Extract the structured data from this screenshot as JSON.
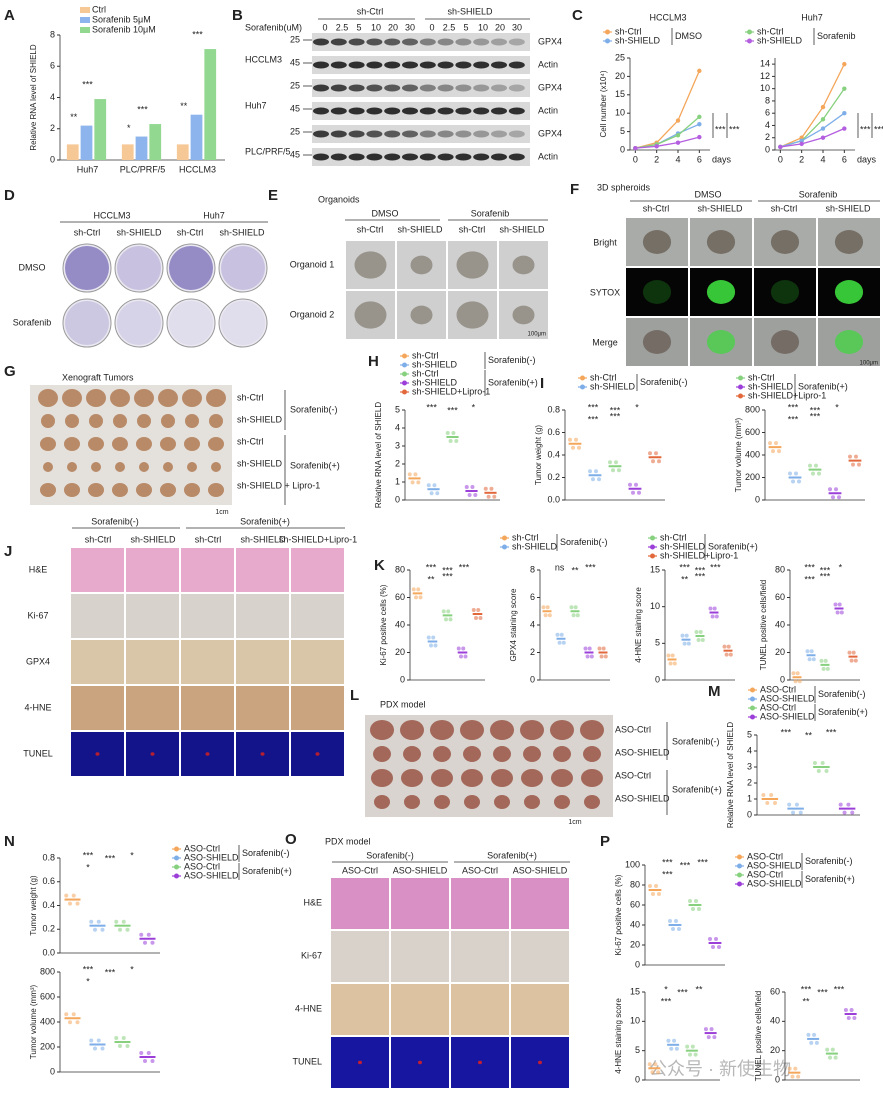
{
  "panel_letters": [
    "A",
    "B",
    "C",
    "D",
    "E",
    "F",
    "G",
    "H",
    "I",
    "J",
    "K",
    "L",
    "M",
    "N",
    "O",
    "P"
  ],
  "blot": {
    "dose_label": "Sorafenib(uM)",
    "groups": [
      "sh-Ctrl",
      "sh-SHIELD"
    ],
    "doses": [
      "0",
      "2.5",
      "5",
      "10",
      "20",
      "30"
    ],
    "cell_lines": [
      "HCCLM3",
      "Huh7",
      "PLC/PRF/5"
    ],
    "proteins": [
      "GPX4",
      "Actin"
    ],
    "markers": [
      "25",
      "45"
    ]
  },
  "colony": {
    "cell_lines": [
      "HCCLM3",
      "Huh7"
    ],
    "groups": [
      "sh-Ctrl",
      "sh-SHIELD"
    ],
    "treatments": [
      "DMSO",
      "Sorafenib"
    ]
  },
  "organoids": {
    "title": "Organoids",
    "treatments": [
      "DMSO",
      "Sorafenib"
    ],
    "groups": [
      "sh-Ctrl",
      "sh-SHIELD"
    ],
    "rows": [
      "Organoid 1",
      "Organoid 2"
    ],
    "scale": "100μm"
  },
  "spheroids": {
    "title": "3D spheroids",
    "treatments": [
      "DMSO",
      "Sorafenib"
    ],
    "groups": [
      "sh-Ctrl",
      "sh-SHIELD"
    ],
    "rows": [
      "Bright",
      "SYTOX",
      "Merge"
    ],
    "scale": "100μm"
  },
  "xenograft": {
    "title": "Xenograft Tumors",
    "rows": [
      "sh-Ctrl",
      "sh-SHIELD",
      "sh-Ctrl",
      "sh-SHIELD",
      "sh-SHIELD + Lipro-1"
    ],
    "groups": [
      "Sorafenib(-)",
      "Sorafenib(+)"
    ],
    "scale": "1cm"
  },
  "ihc": {
    "groups": [
      "Sorafenib(-)",
      "Sorafenib(+)"
    ],
    "columns": [
      "sh-Ctrl",
      "sh-SHIELD",
      "sh-Ctrl",
      "sh-SHIELD",
      "sh-SHIELD+Lipro-1"
    ],
    "rows": [
      "H&E",
      "Ki-67",
      "GPX4",
      "4-HNE",
      "TUNEL"
    ]
  },
  "pdx": {
    "title": "PDX model",
    "rows": [
      "ASO-Ctrl",
      "ASO-SHIELD",
      "ASO-Ctrl",
      "ASO-SHIELD"
    ],
    "groups": [
      "Sorafenib(-)",
      "Sorafenib(+)"
    ],
    "scale": "1cm"
  },
  "pdx_ihc": {
    "title": "PDX model",
    "groups": [
      "Sorafenib(-)",
      "Sorafenib(+)"
    ],
    "columns": [
      "ASO-Ctrl",
      "ASO-SHIELD",
      "ASO-Ctrl",
      "ASO-SHIELD"
    ],
    "rows": [
      "H&E",
      "Ki-67",
      "4-HNE",
      "TUNEL"
    ]
  },
  "watermark": "公众号 · 新使生物",
  "chart_data": [
    {
      "type": "bar",
      "ylabel": "Relative RNA level of SHIELD",
      "categories": [
        "Huh7",
        "PLC/PRF/5",
        "HCCLM3"
      ],
      "series": [
        {
          "name": "Ctrl",
          "color": "#f6c896",
          "values": [
            1,
            1,
            1
          ]
        },
        {
          "name": "Sorafenib 5μM",
          "color": "#8db4ec",
          "values": [
            2.2,
            1.5,
            2.9
          ]
        },
        {
          "name": "Sorafenib 10μM",
          "color": "#93d891",
          "values": [
            3.9,
            2.3,
            7.1
          ]
        }
      ],
      "ylim": [
        0,
        8
      ],
      "yticks": [
        0,
        2,
        4,
        6,
        8
      ],
      "annotations": [
        "**",
        "***",
        "*",
        "***",
        "**",
        "***"
      ]
    },
    {
      "type": "line",
      "title": "HCCLM3",
      "ylabel": "Cell number (x10⁴)",
      "xlabel": "days",
      "x": [
        0,
        2,
        4,
        6
      ],
      "xlim": [
        -0.5,
        7
      ],
      "xticks": [
        0,
        2,
        4,
        6
      ],
      "series": [
        {
          "name": "sh-Ctrl",
          "color": "#f4a65b",
          "values": [
            0.5,
            2,
            8,
            21.5
          ]
        },
        {
          "name": "sh-SHIELD",
          "color": "#7eaee8",
          "values": [
            0.5,
            1.5,
            4.5,
            7
          ]
        },
        {
          "name": "sh-Ctrl",
          "color": "#86d07e",
          "values": [
            0.5,
            1.5,
            4,
            9
          ]
        },
        {
          "name": "sh-SHIELD",
          "color": "#b45ee0",
          "values": [
            0.5,
            1,
            2,
            3.5
          ]
        }
      ],
      "legend_groups": [
        "DMSO",
        "Sorafenib"
      ],
      "ylim": [
        0,
        25
      ],
      "yticks": [
        0,
        5,
        10,
        15,
        20,
        25
      ],
      "annotations": [
        "***",
        "***"
      ]
    },
    {
      "type": "line",
      "title": "Huh7",
      "xlabel": "days",
      "x": [
        0,
        2,
        4,
        6
      ],
      "xlim": [
        -0.5,
        7
      ],
      "xticks": [
        0,
        2,
        4,
        6
      ],
      "series": [
        {
          "color": "#f4a65b",
          "values": [
            0.5,
            2,
            7,
            14
          ]
        },
        {
          "color": "#86d07e",
          "values": [
            0.5,
            1.5,
            5,
            10
          ]
        },
        {
          "color": "#7eaee8",
          "values": [
            0.5,
            1.5,
            3.5,
            6
          ]
        },
        {
          "color": "#b45ee0",
          "values": [
            0.5,
            1,
            2,
            3.5
          ]
        }
      ],
      "ylim": [
        0,
        15
      ],
      "yticks": [
        0,
        2,
        4,
        6,
        8,
        10,
        12,
        14
      ],
      "annotations": [
        "***",
        "***"
      ]
    },
    {
      "type": "dot",
      "ylabel": "Relative RNA level of SHIELD",
      "series": [
        {
          "name": "sh-Ctrl",
          "color": "#f4a65b",
          "values": [
            1.2
          ]
        },
        {
          "name": "sh-SHIELD",
          "color": "#7eaee8",
          "values": [
            0.6
          ]
        },
        {
          "name": "sh-Ctrl",
          "color": "#86d07e",
          "values": [
            3.5
          ]
        },
        {
          "name": "sh-SHIELD",
          "color": "#9b3fd8",
          "values": [
            0.5
          ]
        },
        {
          "name": "sh-SHIELD+Lipro-1",
          "color": "#e2683c",
          "values": [
            0.4
          ]
        }
      ],
      "legend_groups": [
        "Sorafenib(-)",
        "Sorafenib(+)"
      ],
      "ylim": [
        0,
        5
      ],
      "yticks": [
        0,
        1,
        2,
        3,
        4,
        5
      ],
      "annotations": [
        "***",
        "***",
        "*"
      ]
    },
    {
      "type": "dot",
      "ylabel": "Tumor weight (g)",
      "series": [
        {
          "name": "sh-Ctrl",
          "color": "#f4a65b",
          "values": [
            0.5
          ]
        },
        {
          "name": "sh-SHIELD",
          "color": "#7eaee8",
          "values": [
            0.22
          ]
        },
        {
          "name": "sh-Ctrl",
          "color": "#86d07e",
          "values": [
            0.3
          ]
        },
        {
          "name": "sh-SHIELD",
          "color": "#9b3fd8",
          "values": [
            0.1
          ]
        },
        {
          "name": "sh-SHIELD+Lipro-1",
          "color": "#e2683c",
          "values": [
            0.38
          ]
        }
      ],
      "legend_groups": [
        "Sorafenib(-)",
        "Sorafenib(+)"
      ],
      "ylim": [
        0,
        0.8
      ],
      "yticks": [
        {
          "value": 0,
          "label": "0.0"
        },
        0.2,
        0.4,
        0.6,
        0.8
      ],
      "annotations": [
        "***",
        "***",
        "*",
        "***",
        "***"
      ]
    },
    {
      "type": "dot",
      "ylabel": "Tumor volume (mm³)",
      "series": [
        {
          "color": "#f4a65b",
          "values": [
            470
          ]
        },
        {
          "color": "#7eaee8",
          "values": [
            200
          ]
        },
        {
          "color": "#86d07e",
          "values": [
            270
          ]
        },
        {
          "color": "#9b3fd8",
          "values": [
            60
          ]
        },
        {
          "color": "#e2683c",
          "values": [
            350
          ]
        }
      ],
      "ylim": [
        0,
        800
      ],
      "yticks": [
        0,
        200,
        400,
        600,
        800
      ],
      "annotations": [
        "***",
        "***",
        "*",
        "***",
        "***"
      ]
    },
    {
      "type": "dot",
      "ylabel": "Ki-67 positive cells (%)",
      "series": [
        {
          "name": "sh-Ctrl",
          "color": "#f4a65b",
          "values": [
            63
          ]
        },
        {
          "name": "sh-SHIELD",
          "color": "#7eaee8",
          "values": [
            28
          ]
        },
        {
          "name": "sh-Ctrl",
          "color": "#86d07e",
          "values": [
            47
          ]
        },
        {
          "name": "sh-SHIELD",
          "color": "#9b3fd8",
          "values": [
            20
          ]
        },
        {
          "name": "sh-SHIELD+Lipro-1",
          "color": "#e2683c",
          "values": [
            48
          ]
        }
      ],
      "legend_groups": [
        "Sorafenib(-)",
        "Sorafenib(+)"
      ],
      "ylim": [
        0,
        80
      ],
      "yticks": [
        0,
        20,
        40,
        60,
        80
      ],
      "annotations": [
        "***",
        "***",
        "***",
        "**",
        "***"
      ]
    },
    {
      "type": "dot",
      "ylabel": "GPX4 staining score",
      "series": [
        {
          "color": "#f4a65b",
          "values": [
            5
          ]
        },
        {
          "color": "#7eaee8",
          "values": [
            3
          ]
        },
        {
          "color": "#86d07e",
          "values": [
            5
          ]
        },
        {
          "color": "#9b3fd8",
          "values": [
            2
          ]
        },
        {
          "color": "#e2683c",
          "values": [
            2
          ]
        }
      ],
      "ylim": [
        0,
        8
      ],
      "yticks": [
        0,
        2,
        4,
        6,
        8
      ],
      "annotations": [
        "ns",
        "**",
        "***"
      ]
    },
    {
      "type": "dot",
      "ylabel": "4-HNE staining score",
      "series": [
        {
          "color": "#f4a65b",
          "values": [
            2.8
          ]
        },
        {
          "color": "#7eaee8",
          "values": [
            5.5
          ]
        },
        {
          "color": "#86d07e",
          "values": [
            6
          ]
        },
        {
          "color": "#9b3fd8",
          "values": [
            9.2
          ]
        },
        {
          "color": "#e2683c",
          "values": [
            4
          ]
        }
      ],
      "ylim": [
        0,
        15
      ],
      "yticks": [
        0,
        5,
        10,
        15
      ],
      "annotations": [
        "***",
        "***",
        "***",
        "**",
        "***"
      ]
    },
    {
      "type": "dot",
      "ylabel": "TUNEL positive cells/field",
      "series": [
        {
          "color": "#f4a65b",
          "values": [
            2
          ]
        },
        {
          "color": "#7eaee8",
          "values": [
            18
          ]
        },
        {
          "color": "#86d07e",
          "values": [
            11
          ]
        },
        {
          "color": "#9b3fd8",
          "values": [
            52
          ]
        },
        {
          "color": "#e2683c",
          "values": [
            17
          ]
        }
      ],
      "ylim": [
        0,
        80
      ],
      "yticks": [
        0,
        20,
        40,
        60,
        80
      ],
      "annotations": [
        "***",
        "***",
        "*",
        "***",
        "***"
      ]
    },
    {
      "type": "dot",
      "ylabel": "Relative RNA level of SHIELD",
      "series": [
        {
          "name": "ASO-Ctrl",
          "color": "#f4a65b",
          "values": [
            1
          ]
        },
        {
          "name": "ASO-SHIELD",
          "color": "#7eaee8",
          "values": [
            0.4
          ]
        },
        {
          "name": "ASO-Ctrl",
          "color": "#86d07e",
          "values": [
            3
          ]
        },
        {
          "name": "ASO-SHIELD",
          "color": "#9b3fd8",
          "values": [
            0.4
          ]
        }
      ],
      "legend_groups": [
        "Sorafenib(-)",
        "Sorafenib(+)"
      ],
      "ylim": [
        0,
        5
      ],
      "yticks": [
        0,
        1,
        2,
        3,
        4,
        5
      ],
      "annotations": [
        "***",
        "**",
        "***"
      ]
    },
    {
      "type": "dot",
      "ylabel": "Tumor weight (g)",
      "series": [
        {
          "name": "ASO-Ctrl",
          "color": "#f4a65b",
          "values": [
            0.45
          ]
        },
        {
          "name": "ASO-SHIELD",
          "color": "#7eaee8",
          "values": [
            0.23
          ]
        },
        {
          "name": "ASO-Ctrl",
          "color": "#86d07e",
          "values": [
            0.23
          ]
        },
        {
          "name": "ASO-SHIELD",
          "color": "#9b3fd8",
          "values": [
            0.12
          ]
        }
      ],
      "legend_groups": [
        "Sorafenib(-)",
        "Sorafenib(+)"
      ],
      "ylim": [
        0,
        0.8
      ],
      "yticks": [
        {
          "value": 0,
          "label": "0.0"
        },
        0.2,
        0.4,
        0.6,
        0.8
      ],
      "annotations": [
        "***",
        "***",
        "*",
        "*"
      ]
    },
    {
      "type": "dot",
      "ylabel": "Tumor volume (mm³)",
      "series": [
        {
          "color": "#f4a65b",
          "values": [
            430
          ]
        },
        {
          "color": "#7eaee8",
          "values": [
            220
          ]
        },
        {
          "color": "#86d07e",
          "values": [
            240
          ]
        },
        {
          "color": "#9b3fd8",
          "values": [
            120
          ]
        }
      ],
      "ylim": [
        0,
        800
      ],
      "yticks": [
        0,
        200,
        400,
        600,
        800
      ],
      "annotations": [
        "***",
        "***",
        "*",
        "*"
      ]
    },
    {
      "type": "dot",
      "ylabel": "Ki-67 positive cells (%)",
      "series": [
        {
          "name": "ASO-Ctrl",
          "color": "#f4a65b",
          "values": [
            75
          ]
        },
        {
          "name": "ASO-SHIELD",
          "color": "#7eaee8",
          "values": [
            40
          ]
        },
        {
          "name": "ASO-Ctrl",
          "color": "#86d07e",
          "values": [
            60
          ]
        },
        {
          "name": "ASO-SHIELD",
          "color": "#9b3fd8",
          "values": [
            22
          ]
        }
      ],
      "legend_groups": [
        "Sorafenib(-)",
        "Sorafenib(+)"
      ],
      "ylim": [
        0,
        100
      ],
      "yticks": [
        0,
        20,
        40,
        60,
        80,
        100
      ],
      "annotations": [
        "***",
        "***",
        "***",
        "***"
      ]
    },
    {
      "type": "dot",
      "ylabel": "4-HNE staining score",
      "series": [
        {
          "color": "#f4a65b",
          "values": [
            2
          ]
        },
        {
          "color": "#7eaee8",
          "values": [
            6
          ]
        },
        {
          "color": "#86d07e",
          "values": [
            5
          ]
        },
        {
          "color": "#9b3fd8",
          "values": [
            8
          ]
        }
      ],
      "ylim": [
        0,
        15
      ],
      "yticks": [
        0,
        5,
        10,
        15
      ],
      "annotations": [
        "*",
        "***",
        "**",
        "***"
      ]
    },
    {
      "type": "dot",
      "ylabel": "TUNEL positive cells/field",
      "series": [
        {
          "color": "#f4a65b",
          "values": [
            5
          ]
        },
        {
          "color": "#7eaee8",
          "values": [
            28
          ]
        },
        {
          "color": "#86d07e",
          "values": [
            18
          ]
        },
        {
          "color": "#9b3fd8",
          "values": [
            45
          ]
        }
      ],
      "ylim": [
        0,
        60
      ],
      "yticks": [
        0,
        20,
        40,
        60
      ],
      "annotations": [
        "***",
        "***",
        "***",
        "**"
      ]
    }
  ]
}
